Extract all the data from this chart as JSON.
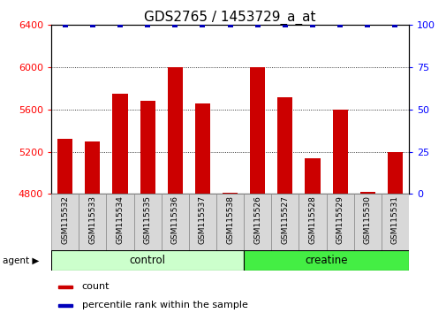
{
  "title": "GDS2765 / 1453729_a_at",
  "categories": [
    "GSM115532",
    "GSM115533",
    "GSM115534",
    "GSM115535",
    "GSM115536",
    "GSM115537",
    "GSM115538",
    "GSM115526",
    "GSM115527",
    "GSM115528",
    "GSM115529",
    "GSM115530",
    "GSM115531"
  ],
  "counts": [
    5320,
    5300,
    5750,
    5680,
    6000,
    5660,
    4810,
    6000,
    5720,
    5140,
    5600,
    4820,
    5200
  ],
  "percentiles": [
    100,
    100,
    100,
    100,
    100,
    100,
    100,
    100,
    100,
    100,
    100,
    100,
    100
  ],
  "ylim": [
    4800,
    6400
  ],
  "yticks_left": [
    4800,
    5200,
    5600,
    6000,
    6400
  ],
  "yticks_right": [
    0,
    25,
    50,
    75,
    100
  ],
  "bar_color": "#cc0000",
  "percentile_color": "#0000bb",
  "bar_width": 0.55,
  "n_control": 7,
  "n_creatine": 6,
  "control_color": "#ccffcc",
  "creatine_color": "#44ee44",
  "legend_count_label": "count",
  "legend_percentile_label": "percentile rank within the sample",
  "title_fontsize": 11,
  "tick_fontsize": 8,
  "xlabel_fontsize": 7
}
